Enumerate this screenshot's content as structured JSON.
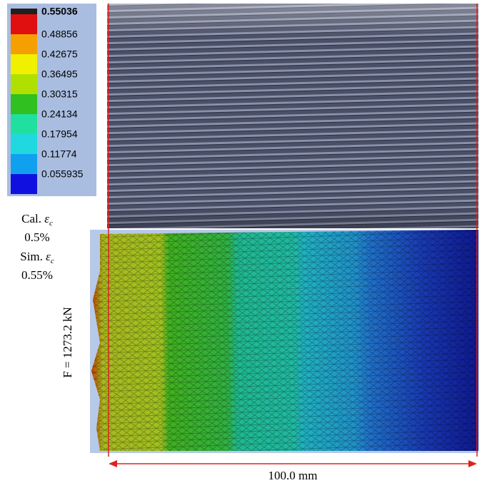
{
  "legend": {
    "entries": [
      {
        "value": 0.55036,
        "color": "#e01010"
      },
      {
        "value": 0.48856,
        "color": "#f5a000"
      },
      {
        "value": 0.42675,
        "color": "#f0f000"
      },
      {
        "value": 0.36495,
        "color": "#b0e000"
      },
      {
        "value": 0.30315,
        "color": "#30c020"
      },
      {
        "value": 0.24134,
        "color": "#20e0a0"
      },
      {
        "value": 0.17954,
        "color": "#20d8e0"
      },
      {
        "value": 0.11774,
        "color": "#10a0f0"
      },
      {
        "value": 0.055935,
        "color": "#1010e0"
      }
    ]
  },
  "labels": {
    "calculated": {
      "prefix": "Cal.",
      "symbol": "ε",
      "subscript": "c",
      "value": "0.5%"
    },
    "simulated": {
      "prefix": "Sim.",
      "symbol": "ε",
      "subscript": "c",
      "value": "0.55%"
    },
    "force": "F = 1273.2 kN",
    "dimension": "100.0 mm"
  }
}
